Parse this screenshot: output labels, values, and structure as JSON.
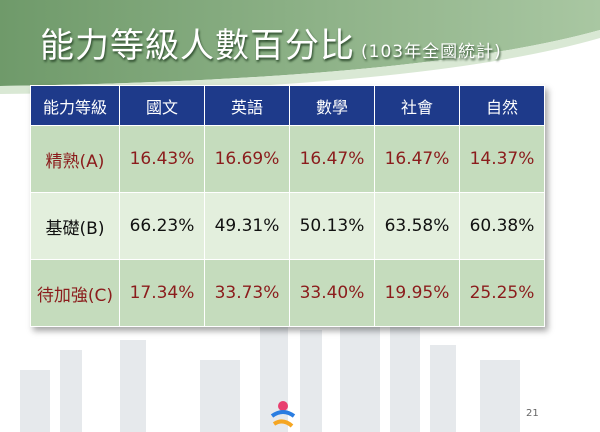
{
  "header": {
    "title": "能力等級人數百分比",
    "subtitle": "(103年全國統計)"
  },
  "table": {
    "columns": [
      "能力等級",
      "國文",
      "英語",
      "數學",
      "社會",
      "自然"
    ],
    "rows": [
      [
        "精熟(A)",
        "16.43%",
        "16.69%",
        "16.47%",
        "16.47%",
        "14.37%"
      ],
      [
        "基礎(B)",
        "66.23%",
        "49.31%",
        "50.13%",
        "63.58%",
        "60.38%"
      ],
      [
        "待加強(C)",
        "17.34%",
        "33.73%",
        "33.40%",
        "19.95%",
        "25.25%"
      ]
    ]
  },
  "footer": {
    "page_number": "21"
  }
}
